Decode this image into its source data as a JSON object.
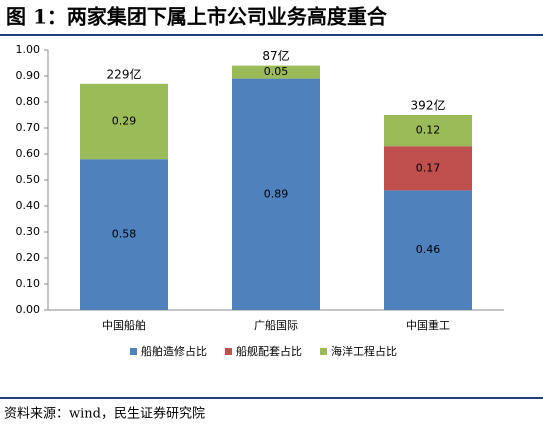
{
  "chart_data": {
    "type": "bar",
    "stacked": true,
    "title": "图 1：两家集团下属上市公司业务高度重合",
    "source": "资料来源：wind，民生证券研究院",
    "categories": [
      "中国船舶",
      "广船国际",
      "中国重工"
    ],
    "annotations": [
      "229亿",
      "87亿",
      "392亿"
    ],
    "series": [
      {
        "name": "船舶造修占比",
        "color": "#4f81bd",
        "values": [
          0.58,
          0.89,
          0.46
        ]
      },
      {
        "name": "船舰配套占比",
        "color": "#c0504d",
        "values": [
          null,
          null,
          0.17
        ]
      },
      {
        "name": "海洋工程占比",
        "color": "#9bbb59",
        "values": [
          0.29,
          0.05,
          0.12
        ]
      }
    ],
    "ylim": [
      0,
      1
    ],
    "yticks": [
      {
        "value": 0,
        "label": "0.00"
      },
      {
        "value": 0.1,
        "label": "0.10"
      },
      {
        "value": 0.2,
        "label": "0.20"
      },
      {
        "value": 0.3,
        "label": "0.30"
      },
      {
        "value": 0.4,
        "label": "0.40"
      },
      {
        "value": 0.5,
        "label": "0.50"
      },
      {
        "value": 0.6,
        "label": "0.60"
      },
      {
        "value": 0.7,
        "label": "0.70"
      },
      {
        "value": 0.8,
        "label": "0.80"
      },
      {
        "value": 0.9,
        "label": "0.90"
      },
      {
        "value": 1,
        "label": "1.00"
      }
    ],
    "legend": "bottom"
  }
}
